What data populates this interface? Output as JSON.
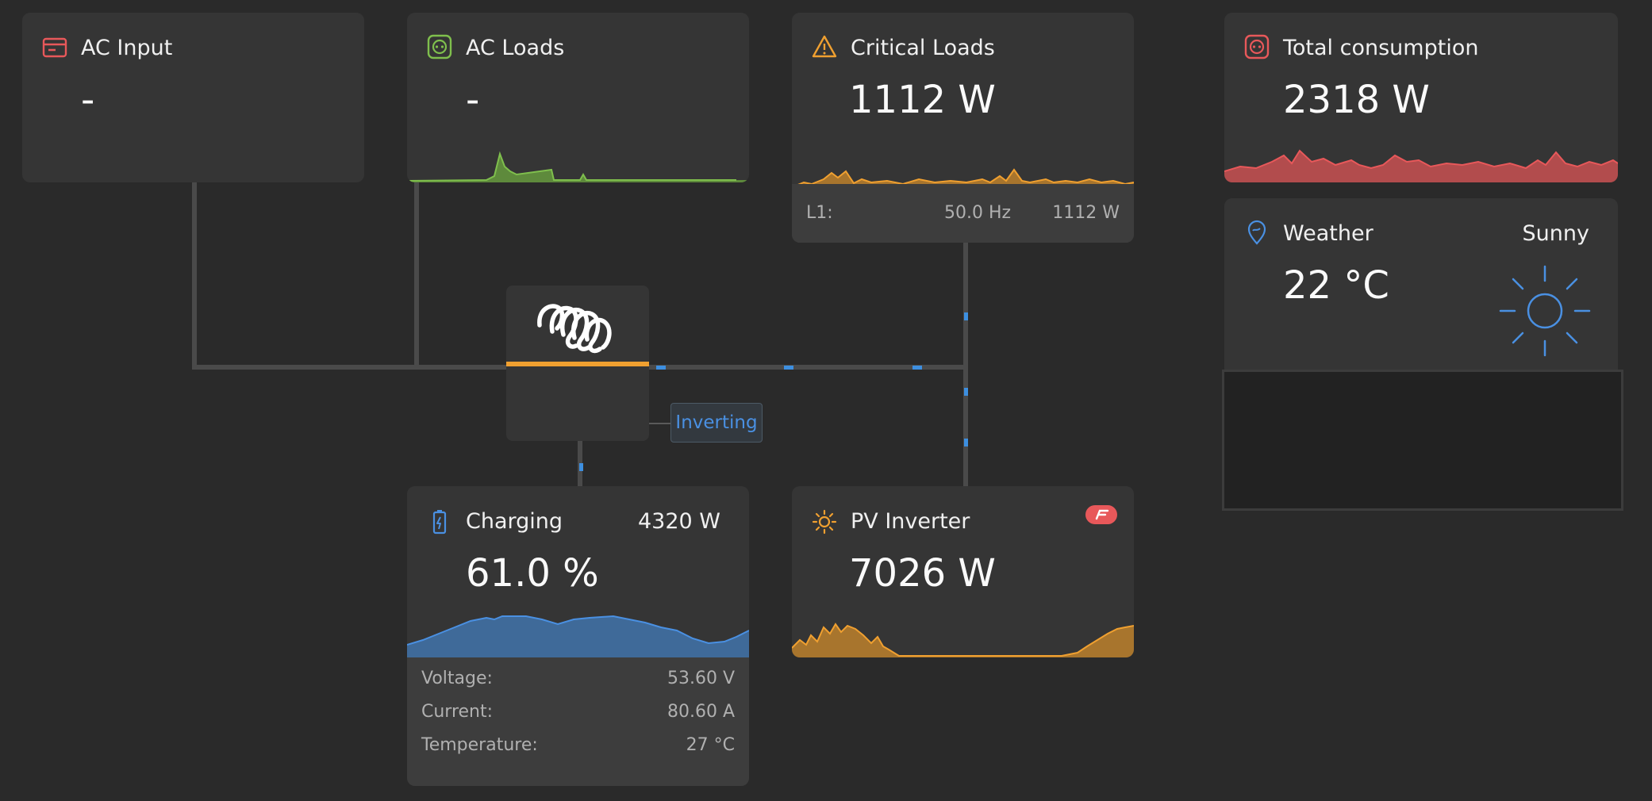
{
  "ac_input": {
    "title": "AC Input",
    "value": "-"
  },
  "ac_loads": {
    "title": "AC Loads",
    "value": "-"
  },
  "critical_loads": {
    "title": "Critical Loads",
    "value": "1112 W",
    "phase_label": "L1:",
    "frequency": "50.0 Hz",
    "phase_power": "1112 W"
  },
  "total_consumption": {
    "title": "Total consumption",
    "value": "2318 W"
  },
  "weather": {
    "title": "Weather",
    "condition": "Sunny",
    "temperature": "22 °C"
  },
  "inverter": {
    "status": "Inverting"
  },
  "battery": {
    "title": "Charging",
    "power": "4320 W",
    "soc": "61.0 %",
    "rows": [
      {
        "label": "Voltage:",
        "value": "53.60 V"
      },
      {
        "label": "Current:",
        "value": "80.60 A"
      },
      {
        "label": "Temperature:",
        "value": "27 °C"
      }
    ]
  },
  "pv_inverter": {
    "title": "PV Inverter",
    "value": "7026 W"
  },
  "colors": {
    "background": "#2a2a2a",
    "panel": "#353535",
    "green": "#7fbf4d",
    "orange": "#f0a030",
    "red": "#e8585a",
    "blue": "#4a90e2"
  },
  "icons": {
    "ac_input": "ac-input-icon",
    "ac_loads": "socket-icon",
    "critical_loads": "warning-icon",
    "total_consumption": "socket-icon",
    "weather": "location-pin-icon",
    "battery": "battery-icon",
    "pv_inverter": "sun-icon",
    "sunny": "sun-large-icon",
    "brand": "victron-logo",
    "fronius": "fronius-logo"
  }
}
